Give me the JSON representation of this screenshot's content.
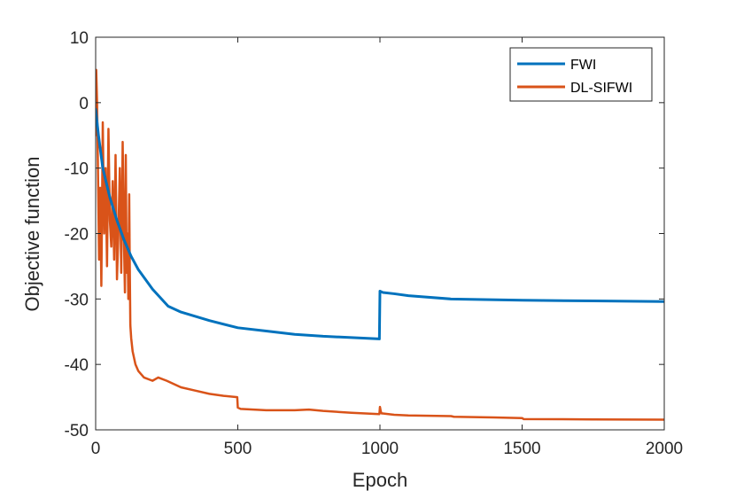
{
  "chart_data": {
    "type": "line",
    "xlabel": "Epoch",
    "ylabel": "Objective function",
    "xlim": [
      0,
      2000
    ],
    "ylim": [
      -50,
      10
    ],
    "xticks": [
      0,
      500,
      1000,
      1500,
      2000
    ],
    "yticks": [
      10,
      0,
      -10,
      -20,
      -30,
      -40,
      -50
    ],
    "legend_position": "top-right",
    "grid": false,
    "series": [
      {
        "name": "FWI",
        "color": "#0072BD",
        "x": [
          0,
          10,
          25,
          50,
          75,
          100,
          125,
          150,
          200,
          255,
          300,
          400,
          500,
          600,
          700,
          800,
          900,
          998,
          1000,
          1010,
          1050,
          1100,
          1250,
          1500,
          1750,
          2000
        ],
        "y": [
          -1,
          -5,
          -10,
          -14.5,
          -18,
          -21,
          -23.5,
          -25.5,
          -28.5,
          -31.1,
          -32,
          -33.3,
          -34.4,
          -34.9,
          -35.4,
          -35.7,
          -35.9,
          -36.1,
          -28.8,
          -29,
          -29.2,
          -29.5,
          -30,
          -30.2,
          -30.3,
          -30.4
        ]
      },
      {
        "name": "DL-SIFWI",
        "color": "#D95319",
        "x": [
          0,
          2,
          5,
          8,
          12,
          16,
          20,
          25,
          30,
          35,
          40,
          45,
          50,
          55,
          60,
          65,
          70,
          75,
          80,
          85,
          90,
          95,
          100,
          103,
          106,
          109,
          112,
          115,
          118,
          120,
          122,
          125,
          130,
          140,
          150,
          170,
          200,
          220,
          250,
          300,
          350,
          400,
          450,
          498,
          500,
          510,
          600,
          700,
          750,
          800,
          900,
          998,
          1000,
          1003,
          1006,
          1010,
          1050,
          1100,
          1250,
          1260,
          1400,
          1500,
          1505,
          1750,
          2000
        ],
        "y": [
          -5,
          5,
          0,
          -10,
          -24,
          -13,
          -28,
          -3,
          -20,
          -10,
          -25,
          -4,
          -18,
          -22,
          -12,
          -24,
          -8,
          -27,
          -20,
          -10,
          -26,
          -6,
          -22,
          -29,
          -8,
          -26,
          -20,
          -30,
          -14,
          -25,
          -34,
          -36,
          -38,
          -40,
          -41,
          -42,
          -42.5,
          -42,
          -42.5,
          -43.5,
          -44,
          -44.5,
          -44.8,
          -45,
          -46.6,
          -46.8,
          -47,
          -47,
          -46.9,
          -47.1,
          -47.4,
          -47.6,
          -46.5,
          -47.2,
          -47.5,
          -47.5,
          -47.7,
          -47.8,
          -47.9,
          -48,
          -48.1,
          -48.2,
          -48.35,
          -48.4,
          -48.45
        ]
      }
    ]
  }
}
